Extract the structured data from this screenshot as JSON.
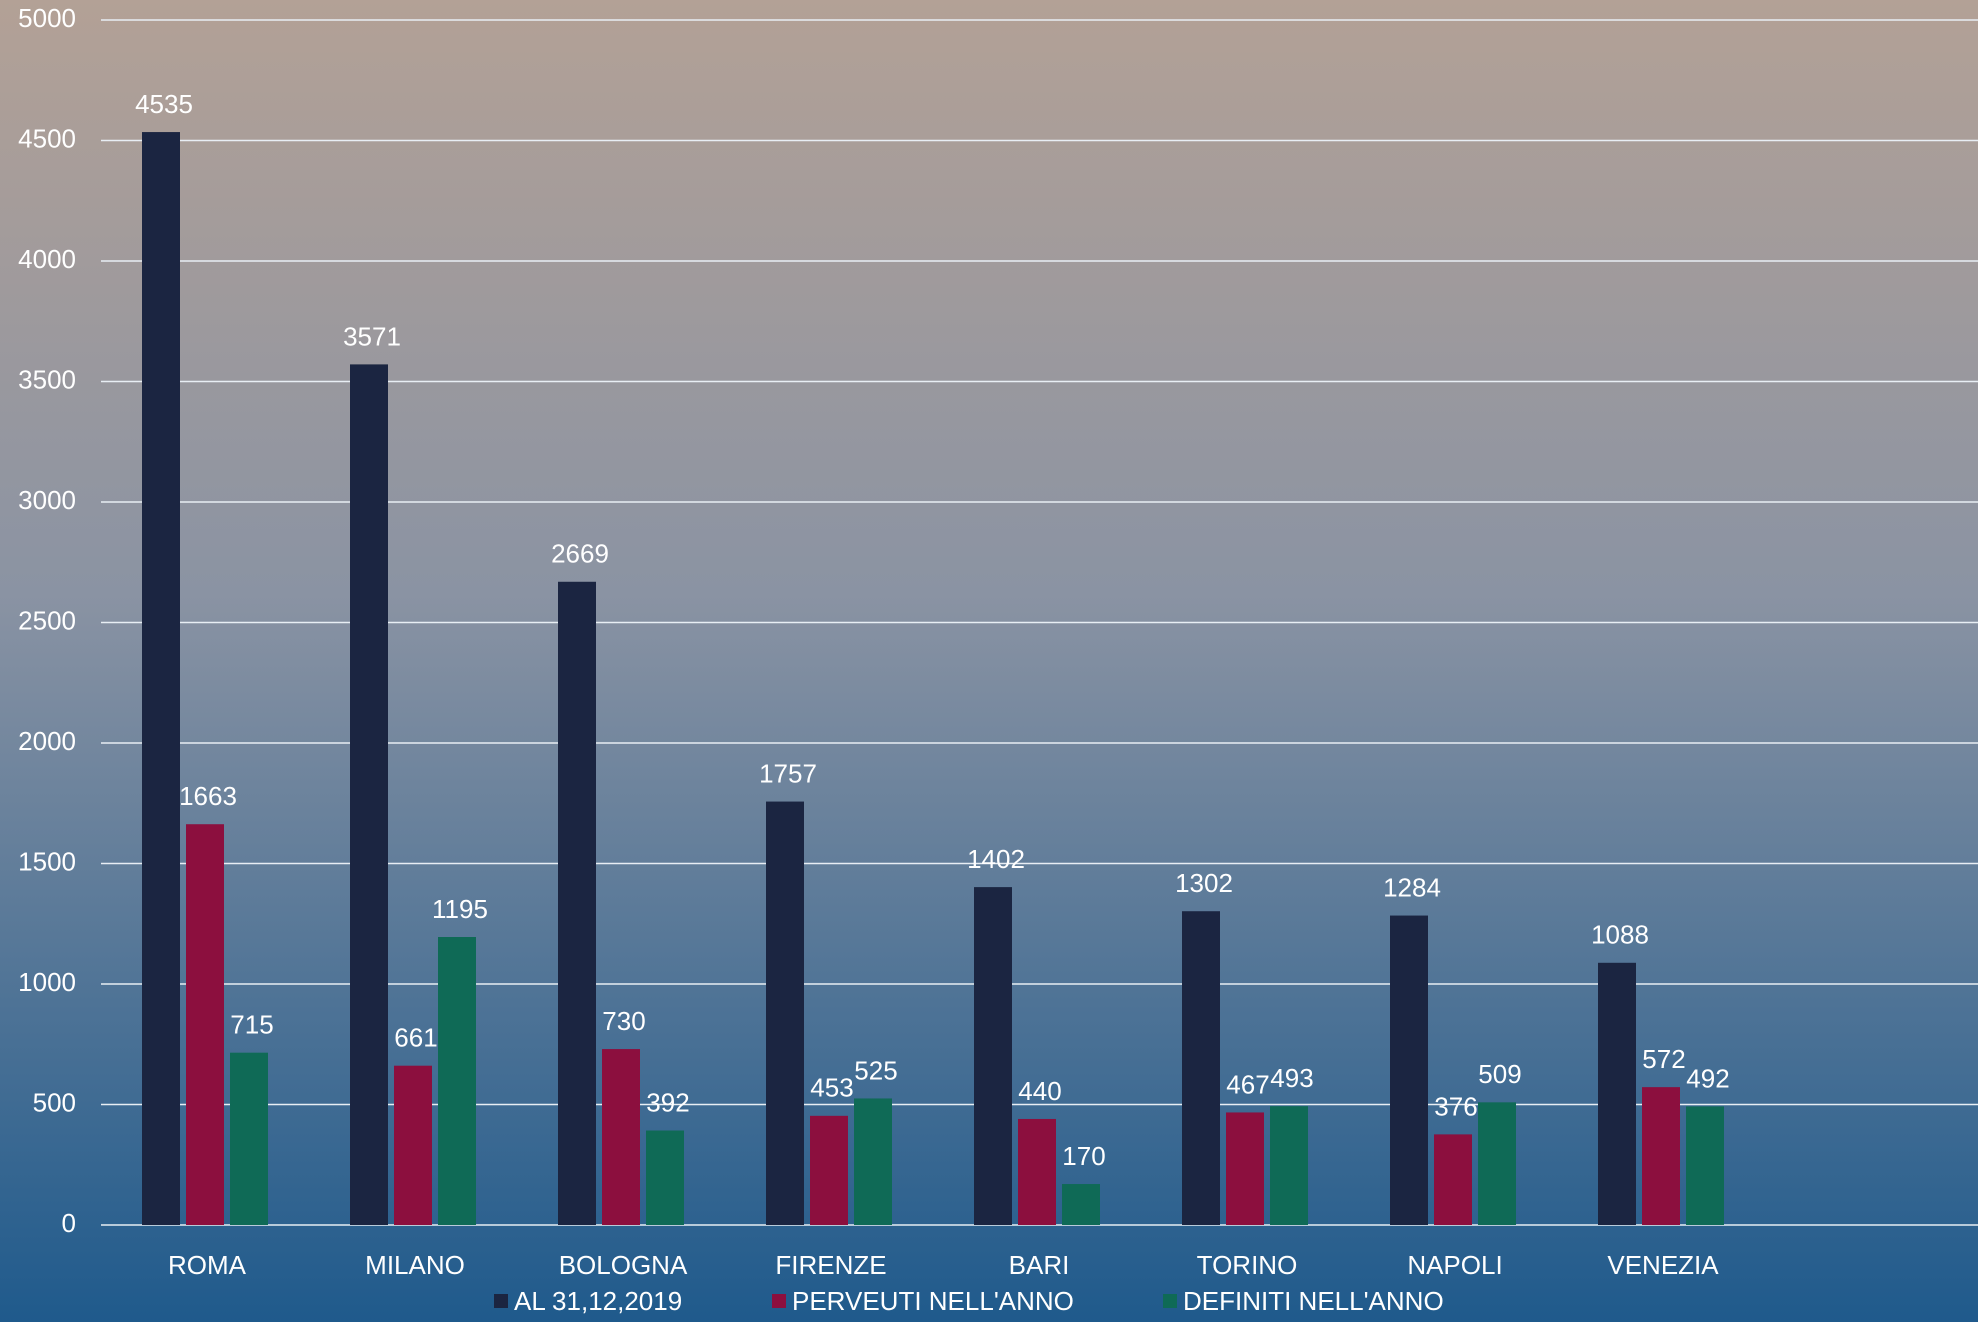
{
  "chart_data": {
    "type": "bar",
    "categories": [
      "ROMA",
      "MILANO",
      "BOLOGNA",
      "FIRENZE",
      "BARI",
      "TORINO",
      "NAPOLI",
      "VENEZIA"
    ],
    "series": [
      {
        "name": "AL 31,12,2019",
        "color": "#1b2541",
        "values": [
          4535,
          3571,
          2669,
          1757,
          1402,
          1302,
          1284,
          1088
        ]
      },
      {
        "name": "PERVEUTI NELL'ANNO",
        "color": "#8c0f3e",
        "values": [
          1663,
          661,
          730,
          453,
          440,
          467,
          376,
          572
        ]
      },
      {
        "name": "DEFINITI NELL'ANNO",
        "color": "#0f6a56",
        "values": [
          715,
          1195,
          392,
          525,
          170,
          493,
          509,
          492
        ]
      }
    ],
    "ylim": [
      0,
      5000
    ],
    "yticks": [
      0,
      500,
      1000,
      1500,
      2000,
      2500,
      3000,
      3500,
      4000,
      4500,
      5000
    ],
    "grid": true,
    "legend": "bottom"
  }
}
